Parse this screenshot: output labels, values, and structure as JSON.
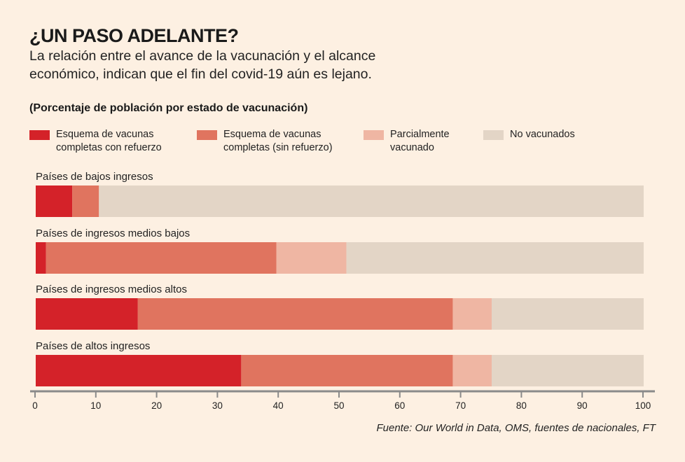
{
  "header": {
    "title": "¿UN PASO ADELANTE?",
    "subtitle": "La relación entre el avance de la vacunación y el alcance económico, indican que el fin del covid-19 aún es lejano.",
    "units": "(Porcentaje de población por estado de vacunación)"
  },
  "legend": [
    {
      "label": "Esquema de vacunas completas con refuerzo",
      "color": "#d42229"
    },
    {
      "label": "Esquema de vacunas completas (sin refuerzo)",
      "color": "#e0745f"
    },
    {
      "label": "Parcialmente vacunado",
      "color": "#efb6a3"
    },
    {
      "label": "No vacunados",
      "color": "#e3d5c6"
    }
  ],
  "chart_data": {
    "type": "bar",
    "orientation": "horizontal",
    "stacked": true,
    "title": "(Porcentaje de población por estado de vacunación)",
    "categories": [
      "Países de bajos ingresos",
      "Países de ingresos medios bajos",
      "Países de ingresos medios altos",
      "Países de altos ingresos"
    ],
    "series": [
      {
        "name": "Esquema de vacunas completas con refuerzo",
        "color": "#d42229",
        "values": [
          6.0,
          1.7,
          16.8,
          33.8
        ]
      },
      {
        "name": "Esquema de vacunas completas (sin refuerzo)",
        "color": "#e0745f",
        "values": [
          4.4,
          37.9,
          51.8,
          34.8
        ]
      },
      {
        "name": "Parcialmente vacunado",
        "color": "#efb6a3",
        "values": [
          0,
          11.5,
          6.4,
          6.4
        ]
      },
      {
        "name": "No vacunados",
        "color": "#e3d5c6",
        "values": [
          89.6,
          48.9,
          25.0,
          25.0
        ]
      }
    ],
    "xlim": [
      0,
      100
    ],
    "xticks": [
      "0",
      "10",
      "20",
      "30",
      "40",
      "50",
      "60",
      "70",
      "80",
      "90",
      "100"
    ],
    "xlabel": "",
    "ylabel": "",
    "grid": false,
    "legend_position": "top"
  },
  "source": "Fuente: Our World in Data, OMS, fuentes de nacionales, FT"
}
